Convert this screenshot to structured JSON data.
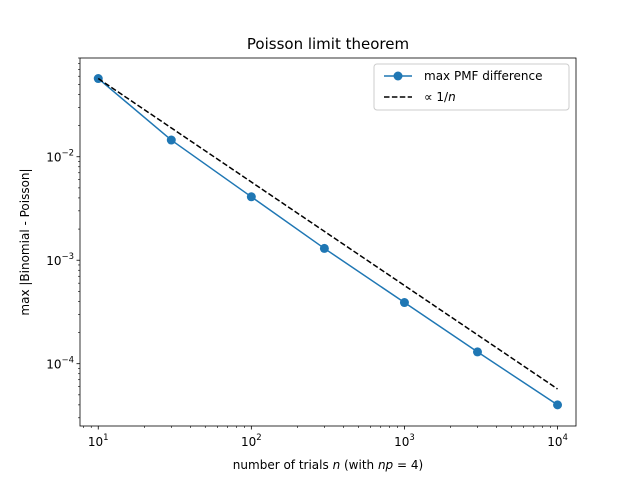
{
  "chart_data": {
    "type": "line",
    "title": "Poisson limit theorem",
    "xlabel": "number of trials n (with np = 4)",
    "xlabel_parts": [
      "number of trials ",
      "n",
      " (with ",
      "np",
      " = 4)"
    ],
    "ylabel": "max |Binomial - Poisson|",
    "xscale": "log",
    "yscale": "log",
    "xlim": [
      7.6,
      13200
    ],
    "ylim": [
      2.5e-05,
      0.09
    ],
    "grid": false,
    "legend_position": "top-right",
    "x_ticks": [
      {
        "base": "10",
        "exp": "1",
        "value": 10
      },
      {
        "base": "10",
        "exp": "2",
        "value": 100
      },
      {
        "base": "10",
        "exp": "3",
        "value": 1000
      },
      {
        "base": "10",
        "exp": "4",
        "value": 10000
      }
    ],
    "y_ticks": [
      {
        "base": "10",
        "exp": "−4",
        "value": 0.0001
      },
      {
        "base": "10",
        "exp": "−3",
        "value": 0.001
      },
      {
        "base": "10",
        "exp": "−2",
        "value": 0.01
      }
    ],
    "series": [
      {
        "name": "max PMF difference",
        "color": "#1f77b4",
        "style": "solid",
        "marker": "circle",
        "x": [
          10,
          30,
          100,
          300,
          1000,
          3000,
          10000
        ],
        "y": [
          0.057,
          0.0145,
          0.0041,
          0.0013,
          0.00039,
          0.00013,
          4e-05
        ]
      },
      {
        "name": "∝ 1/n",
        "name_parts": [
          "∝ 1/",
          "n"
        ],
        "color": "#000000",
        "style": "dashed",
        "marker": "none",
        "x": [
          10,
          10000
        ],
        "y": [
          0.057,
          5.7e-05
        ]
      }
    ]
  }
}
